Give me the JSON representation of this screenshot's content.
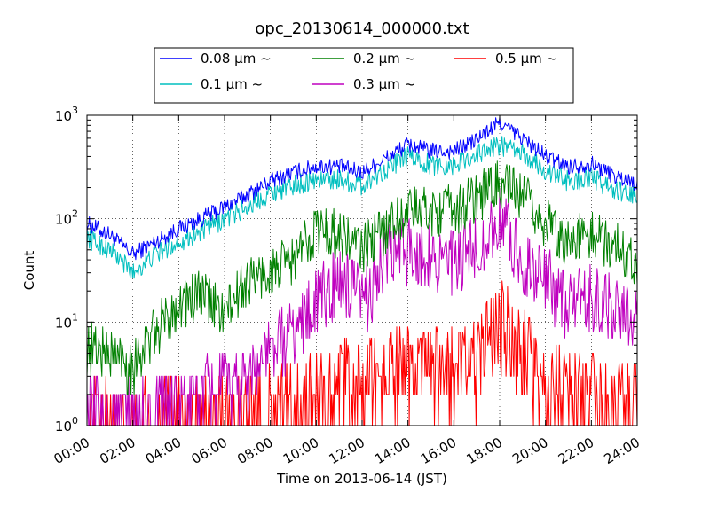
{
  "chart_data": {
    "type": "line",
    "title": "opc_20130614_000000.txt",
    "xlabel": "Time on 2013-06-14 (JST)",
    "ylabel": "Count",
    "y_scale": "log",
    "ylim": [
      1,
      1000
    ],
    "xlim": [
      "2013-06-14 00:00",
      "2013-06-15 00:00"
    ],
    "grid": true,
    "legend_position": "top-center",
    "x_ticks": [
      "00:00",
      "02:00",
      "04:00",
      "06:00",
      "08:00",
      "10:00",
      "12:00",
      "14:00",
      "16:00",
      "18:00",
      "20:00",
      "22:00",
      "24:00"
    ],
    "y_ticks": [
      {
        "base": "10",
        "exp": "0"
      },
      {
        "base": "10",
        "exp": "1"
      },
      {
        "base": "10",
        "exp": "2"
      },
      {
        "base": "10",
        "exp": "3"
      }
    ],
    "x": [
      "00:00",
      "01:00",
      "02:00",
      "03:00",
      "04:00",
      "05:00",
      "06:00",
      "07:00",
      "08:00",
      "09:00",
      "10:00",
      "11:00",
      "12:00",
      "13:00",
      "14:00",
      "15:00",
      "16:00",
      "17:00",
      "18:00",
      "19:00",
      "20:00",
      "21:00",
      "22:00",
      "23:00",
      "24:00"
    ],
    "series": [
      {
        "name": "0.08 μm ~",
        "color": "#0000ff",
        "values": [
          90,
          70,
          45,
          60,
          80,
          100,
          130,
          170,
          230,
          280,
          320,
          320,
          280,
          380,
          520,
          450,
          450,
          580,
          850,
          600,
          400,
          320,
          340,
          260,
          220
        ]
      },
      {
        "name": "0.1 μm ~",
        "color": "#00bfbf",
        "values": [
          65,
          50,
          30,
          45,
          60,
          75,
          100,
          130,
          180,
          210,
          240,
          240,
          210,
          300,
          400,
          330,
          330,
          420,
          520,
          420,
          290,
          230,
          250,
          190,
          160
        ]
      },
      {
        "name": "0.2 μm ~",
        "color": "#008000",
        "values": [
          6,
          5,
          4,
          8,
          15,
          18,
          12,
          25,
          30,
          40,
          80,
          70,
          50,
          80,
          120,
          120,
          120,
          160,
          220,
          160,
          90,
          60,
          70,
          55,
          40
        ]
      },
      {
        "name": "0.3 μm ~",
        "color": "#bf00bf",
        "values": [
          1.2,
          1.2,
          1.2,
          1.3,
          1.5,
          2,
          2.5,
          3,
          5,
          8,
          15,
          25,
          15,
          40,
          50,
          45,
          35,
          50,
          95,
          40,
          25,
          15,
          16,
          14,
          12
        ]
      },
      {
        "name": "0.5 μm ~",
        "color": "#ff0000",
        "values": [
          1,
          1,
          1,
          1,
          1,
          1,
          1,
          1.2,
          1.5,
          1.8,
          2,
          2.5,
          2.5,
          3,
          3.5,
          3,
          3.5,
          4,
          10,
          5,
          2.5,
          2,
          2,
          1.5,
          1.5
        ]
      }
    ]
  }
}
